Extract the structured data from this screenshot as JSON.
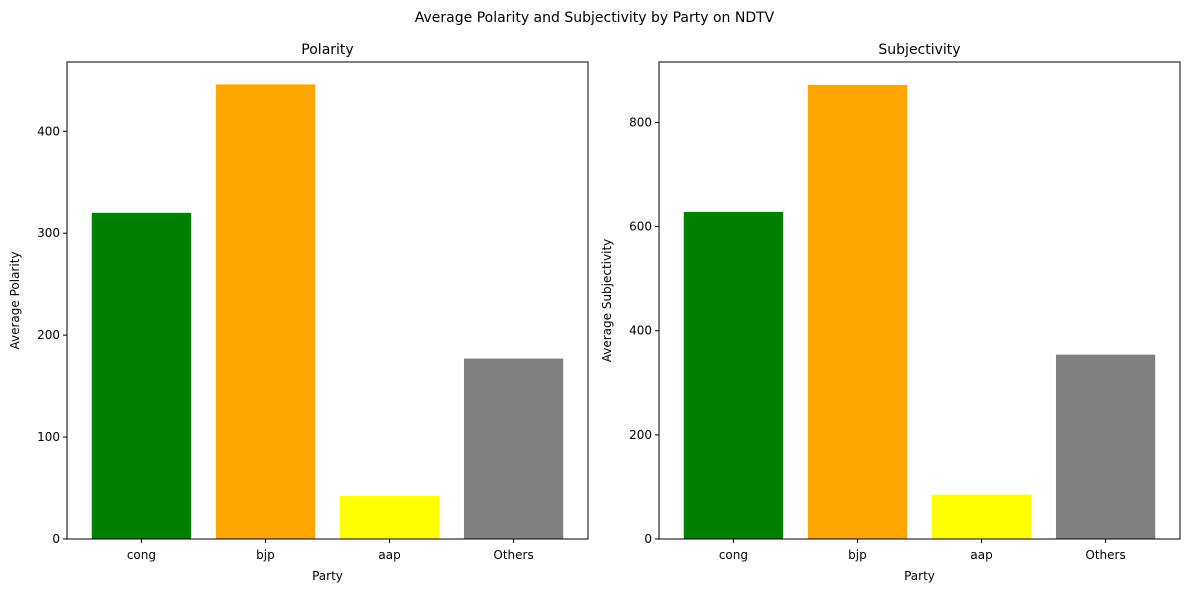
{
  "figure": {
    "suptitle": "Average Polarity and Subjectivity by Party on NDTV"
  },
  "chart_data": [
    {
      "type": "bar",
      "title": "Polarity",
      "xlabel": "Party",
      "ylabel": "Average Polarity",
      "categories": [
        "cong",
        "bjp",
        "aap",
        "Others"
      ],
      "values": [
        320,
        446,
        42,
        177
      ],
      "colors": [
        "#008000",
        "#ffa500",
        "#ffff00",
        "#808080"
      ],
      "ylim": [
        0,
        468
      ],
      "yticks": [
        0,
        100,
        200,
        300,
        400
      ],
      "grid": false,
      "legend": "none"
    },
    {
      "type": "bar",
      "title": "Subjectivity",
      "xlabel": "Party",
      "ylabel": "Average Subjectivity",
      "categories": [
        "cong",
        "bjp",
        "aap",
        "Others"
      ],
      "values": [
        628,
        872,
        85,
        354
      ],
      "colors": [
        "#008000",
        "#ffa500",
        "#ffff00",
        "#808080"
      ],
      "ylim": [
        0,
        916
      ],
      "yticks": [
        0,
        200,
        400,
        600,
        800
      ],
      "grid": false,
      "legend": "none"
    }
  ]
}
